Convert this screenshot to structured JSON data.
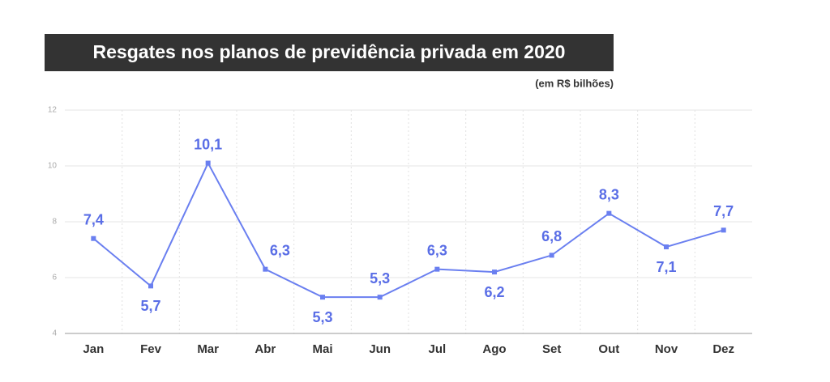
{
  "chart_data": {
    "type": "line",
    "title": "Resgates nos planos de previdência privada em 2020",
    "subtitle": "(em R$ bilhões)",
    "categories": [
      "Jan",
      "Fev",
      "Mar",
      "Abr",
      "Mai",
      "Jun",
      "Jul",
      "Ago",
      "Set",
      "Out",
      "Nov",
      "Dez"
    ],
    "values": [
      7.4,
      5.7,
      10.1,
      6.3,
      5.3,
      5.3,
      6.3,
      6.2,
      6.8,
      8.3,
      7.1,
      7.7
    ],
    "value_labels": [
      "7,4",
      "5,7",
      "10,1",
      "6,3",
      "5,3",
      "5,3",
      "6,3",
      "6,2",
      "6,8",
      "8,3",
      "7,1",
      "7,7"
    ],
    "color": "#6a7ff0",
    "ylim": [
      4,
      12
    ],
    "yticks": [
      4,
      6,
      8,
      10,
      12
    ],
    "grid": true
  }
}
